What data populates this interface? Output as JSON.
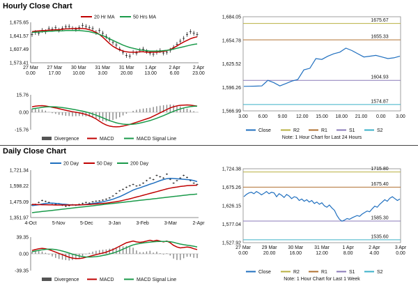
{
  "colors": {
    "price": "#222222",
    "ma_short": "#c00000",
    "ma_long": "#1a9a4a",
    "ma_200": "#1a9a4a",
    "macd": "#c00000",
    "signal": "#1a9a4a",
    "divergence": "#888888",
    "close": "#1f6fbf",
    "R2": "#b8b040",
    "R1": "#b07030",
    "S1": "#8a7ab8",
    "S2": "#3ab0c8",
    "day20": "#1f6fbf"
  },
  "hourly": {
    "title": "Hourly Close Chart",
    "footnote": "Note: 1 Hour Chart for Last 24 Hours",
    "price_chart": {
      "legend": [
        "20 Hr MA",
        "50 Hrs MA"
      ],
      "ylim": [
        1573.41,
        1675.65
      ],
      "y_ticks": [
        "1,675.65",
        "1,641.57",
        "1,607.49",
        "1,573.41"
      ],
      "x_ticks": [
        [
          "27 Mar",
          "0.00"
        ],
        [
          "27 Mar",
          "17.00"
        ],
        [
          "30 Mar",
          "10.00"
        ],
        [
          "31 Mar",
          "3.00"
        ],
        [
          "31 Mar",
          "20.00"
        ],
        [
          "1 Apr",
          "13.00"
        ],
        [
          "2 Apr",
          "6.00"
        ],
        [
          "2 Apr",
          "23.00"
        ]
      ],
      "price": [
        1645,
        1650,
        1648,
        1655,
        1652,
        1660,
        1658,
        1662,
        1656,
        1660,
        1664,
        1665,
        1660,
        1658,
        1662,
        1668,
        1665,
        1662,
        1660,
        1650,
        1655,
        1648,
        1640,
        1632,
        1625,
        1618,
        1608,
        1600,
        1592,
        1590,
        1600,
        1598,
        1605,
        1608,
        1602,
        1598,
        1595,
        1600,
        1604,
        1598,
        1600,
        1605,
        1612,
        1620,
        1628,
        1635,
        1645,
        1652,
        1648,
        1645
      ],
      "ma20": [
        1652,
        1653,
        1654,
        1655,
        1655,
        1656,
        1656,
        1657,
        1657,
        1658,
        1659,
        1659,
        1660,
        1660,
        1660,
        1660,
        1659,
        1657,
        1654,
        1650,
        1645,
        1638,
        1630,
        1622,
        1615,
        1610,
        1606,
        1603,
        1601,
        1600,
        1600,
        1600,
        1601,
        1601,
        1600,
        1600,
        1600,
        1600,
        1601,
        1602,
        1604,
        1607,
        1611,
        1616,
        1621,
        1626,
        1630,
        1634,
        1637,
        1639
      ],
      "ma50": [
        1650,
        1651,
        1651,
        1652,
        1652,
        1653,
        1653,
        1654,
        1654,
        1654,
        1655,
        1655,
        1655,
        1655,
        1655,
        1654,
        1653,
        1652,
        1650,
        1648,
        1645,
        1642,
        1638,
        1634,
        1630,
        1626,
        1622,
        1618,
        1615,
        1612,
        1610,
        1608,
        1606,
        1605,
        1604,
        1603,
        1603,
        1603,
        1603,
        1604,
        1605,
        1606,
        1608,
        1610,
        1612,
        1614,
        1616,
        1618,
        1620,
        1621
      ]
    },
    "macd_chart": {
      "legend": [
        "Divergence",
        "MACD",
        "MACD Signal Line"
      ],
      "ylim": [
        -15.76,
        15.76
      ],
      "y_ticks": [
        "15.76",
        "0.00",
        "-15.76"
      ],
      "macd": [
        5,
        5.5,
        5.8,
        6,
        5.7,
        5.2,
        4.5,
        4,
        3.2,
        2.5,
        1.8,
        1.2,
        0.5,
        0,
        -0.5,
        -1.2,
        -2,
        -3,
        -4.5,
        -6,
        -8,
        -10,
        -11.5,
        -12.5,
        -13,
        -13.2,
        -13,
        -12.5,
        -11.8,
        -11,
        -10,
        -9,
        -8,
        -7,
        -6,
        -5,
        -3.5,
        -2,
        -0.5,
        1,
        2.5,
        4,
        5,
        5.8,
        6.3,
        6.5,
        6.6,
        6.4,
        6,
        5.6
      ],
      "signal": [
        3,
        3.5,
        4,
        4.5,
        4.8,
        5,
        5,
        4.9,
        4.6,
        4.2,
        3.8,
        3.3,
        2.8,
        2.2,
        1.6,
        1,
        0.3,
        -0.5,
        -1.5,
        -2.6,
        -3.8,
        -5,
        -6.3,
        -7.5,
        -8.6,
        -9.5,
        -10.2,
        -10.7,
        -11,
        -11,
        -10.8,
        -10.4,
        -9.8,
        -9.1,
        -8.3,
        -7.5,
        -6.5,
        -5.4,
        -4.2,
        -3,
        -1.7,
        -0.4,
        0.8,
        2,
        3,
        3.9,
        4.6,
        5.1,
        5.4,
        5.5
      ]
    },
    "close_chart": {
      "ylim": [
        1566.99,
        1684.05
      ],
      "y_ticks": [
        "1,684.05",
        "1,654.78",
        "1,625.52",
        "1,596.26",
        "1,566.99"
      ],
      "x_ticks": [
        "3.00",
        "6.00",
        "9.00",
        "12.00",
        "15.00",
        "18.00",
        "21.00",
        "0.00",
        "3.00"
      ],
      "levels": [
        {
          "name": "R2",
          "value": 1675.67,
          "label": "1675.67"
        },
        {
          "name": "R1",
          "value": 1655.33,
          "label": "1655.33"
        },
        {
          "name": "S1",
          "value": 1604.93,
          "label": "1604.93"
        },
        {
          "name": "S2",
          "value": 1574.87,
          "label": "1574.87"
        }
      ],
      "close": [
        1597.5,
        1597.6,
        1597.8,
        1598,
        1605,
        1602,
        1598,
        1601,
        1604,
        1606,
        1618,
        1620,
        1632,
        1631,
        1635,
        1638,
        1640,
        1645,
        1642,
        1638,
        1634,
        1635,
        1636,
        1634,
        1632,
        1633,
        1635
      ]
    },
    "bottom_legend": [
      "Close",
      "R2",
      "R1",
      "S1",
      "S2"
    ]
  },
  "daily": {
    "title": "Daily Close Chart",
    "footnote": "Note: 1 Hour Chart for Last 1 Week",
    "price_chart": {
      "legend": [
        "20 Day",
        "50 Day",
        "200 Day"
      ],
      "ylim": [
        1351.97,
        1721.34
      ],
      "y_ticks": [
        "1,721.34",
        "1,598.22",
        "1,475.09",
        "1,351.97"
      ],
      "x_ticks": [
        "4-Oct",
        "5-Nov",
        "5-Dec",
        "3-Jan",
        "3-Feb",
        "3-Mar",
        "2-Apr"
      ],
      "price": [
        1450,
        1455,
        1470,
        1485,
        1478,
        1470,
        1462,
        1455,
        1460,
        1448,
        1440,
        1445,
        1452,
        1448,
        1455,
        1462,
        1470,
        1465,
        1475,
        1480,
        1482,
        1488,
        1495,
        1505,
        1520,
        1540,
        1560,
        1572,
        1588,
        1600,
        1610,
        1598,
        1605,
        1620,
        1640,
        1660,
        1648,
        1680,
        1670,
        1660,
        1690,
        1650,
        1620,
        1640,
        1660,
        1680,
        1665,
        1640,
        1620,
        1610
      ],
      "ma20": [
        1445,
        1448,
        1452,
        1458,
        1462,
        1464,
        1465,
        1463,
        1460,
        1457,
        1455,
        1452,
        1451,
        1450,
        1450,
        1452,
        1455,
        1458,
        1462,
        1466,
        1470,
        1475,
        1481,
        1488,
        1495,
        1505,
        1515,
        1527,
        1540,
        1553,
        1566,
        1576,
        1584,
        1593,
        1602,
        1612,
        1620,
        1630,
        1640,
        1648,
        1655,
        1658,
        1656,
        1654,
        1652,
        1650,
        1648,
        1646,
        1640,
        1632
      ],
      "ma50": [
        1455,
        1454,
        1453,
        1452,
        1452,
        1451,
        1451,
        1450,
        1450,
        1450,
        1450,
        1450,
        1450,
        1451,
        1451,
        1452,
        1453,
        1454,
        1456,
        1458,
        1460,
        1462,
        1465,
        1468,
        1472,
        1476,
        1480,
        1486,
        1492,
        1498,
        1505,
        1512,
        1519,
        1526,
        1533,
        1540,
        1547,
        1554,
        1561,
        1568,
        1575,
        1581,
        1586,
        1590,
        1594,
        1597,
        1600,
        1602,
        1603,
        1604
      ],
      "ma200": [
        1390,
        1393,
        1396,
        1399,
        1402,
        1405,
        1408,
        1411,
        1414,
        1417,
        1420,
        1423,
        1426,
        1429,
        1432,
        1435,
        1438,
        1441,
        1444,
        1447,
        1450,
        1453,
        1456,
        1459,
        1462,
        1465,
        1468,
        1471,
        1474,
        1477,
        1480,
        1483,
        1486,
        1489,
        1492,
        1495,
        1498,
        1501,
        1504,
        1507,
        1510,
        1513,
        1516,
        1519,
        1522,
        1525,
        1528,
        1531,
        1533,
        1535
      ]
    },
    "macd_chart": {
      "legend": [
        "Divergence",
        "MACD",
        "MACD Signal Line"
      ],
      "ylim": [
        -39.35,
        39.35
      ],
      "y_ticks": [
        "39.35",
        "0.00",
        "-39.35"
      ],
      "macd": [
        8,
        10,
        12,
        13,
        12,
        10,
        7,
        4,
        1,
        -2,
        -5,
        -8,
        -10,
        -11,
        -11,
        -10,
        -8,
        -6,
        -4,
        -2,
        0,
        2,
        4,
        7,
        10,
        14,
        18,
        22,
        26,
        28,
        30,
        28,
        27,
        28,
        30,
        32,
        30,
        32,
        30,
        28,
        30,
        26,
        20,
        16,
        14,
        15,
        16,
        15,
        12,
        10
      ],
      "signal": [
        5,
        6.5,
        8,
        9.5,
        10.5,
        11,
        10.8,
        10,
        8.5,
        6.5,
        4.2,
        1.8,
        -0.8,
        -3,
        -5,
        -6.5,
        -7.3,
        -7.5,
        -7.2,
        -6.5,
        -5.5,
        -4,
        -2.5,
        -0.5,
        1.8,
        4.5,
        7.5,
        11,
        14.5,
        18,
        21,
        23,
        24.5,
        25.5,
        26.5,
        27.5,
        28.2,
        28.8,
        29,
        29,
        29.2,
        28.5,
        27,
        25,
        23,
        21.5,
        20.3,
        19.2,
        17.8,
        16.3
      ]
    },
    "close_chart": {
      "ylim": [
        1527.92,
        1724.38
      ],
      "y_ticks": [
        "1,724.38",
        "1,675.26",
        "1,626.15",
        "1,577.04",
        "1,527.92"
      ],
      "x_ticks": [
        [
          "27 Mar",
          "0.00"
        ],
        [
          "29 Mar",
          "20.00"
        ],
        [
          "30 Mar",
          "16.00"
        ],
        [
          "31 Mar",
          "12.00"
        ],
        [
          "1 Apr",
          "8.00"
        ],
        [
          "2 Apr",
          "4.00"
        ],
        [
          "3 Apr",
          "0.00"
        ]
      ],
      "levels": [
        {
          "name": "R2",
          "value": 1715.8,
          "label": "1715.80"
        },
        {
          "name": "R1",
          "value": 1675.4,
          "label": "1675.40"
        },
        {
          "name": "S1",
          "value": 1585.3,
          "label": "1585.30"
        },
        {
          "name": "S2",
          "value": 1535.6,
          "label": "1535.60"
        }
      ],
      "close": [
        1650,
        1656,
        1660,
        1662,
        1658,
        1664,
        1660,
        1655,
        1659,
        1664,
        1658,
        1662,
        1660,
        1650,
        1658,
        1654,
        1648,
        1656,
        1652,
        1645,
        1650,
        1648,
        1640,
        1644,
        1638,
        1642,
        1636,
        1640,
        1632,
        1636,
        1630,
        1634,
        1626,
        1622,
        1628,
        1620,
        1614,
        1600,
        1590,
        1585,
        1588,
        1592,
        1590,
        1594,
        1597,
        1600,
        1598,
        1604,
        1608,
        1612,
        1610,
        1618,
        1625,
        1622,
        1630,
        1636,
        1642,
        1638,
        1646,
        1650,
        1645,
        1640,
        1644
      ]
    },
    "bottom_legend": [
      "Close",
      "R2",
      "R1",
      "S1",
      "S2"
    ]
  }
}
